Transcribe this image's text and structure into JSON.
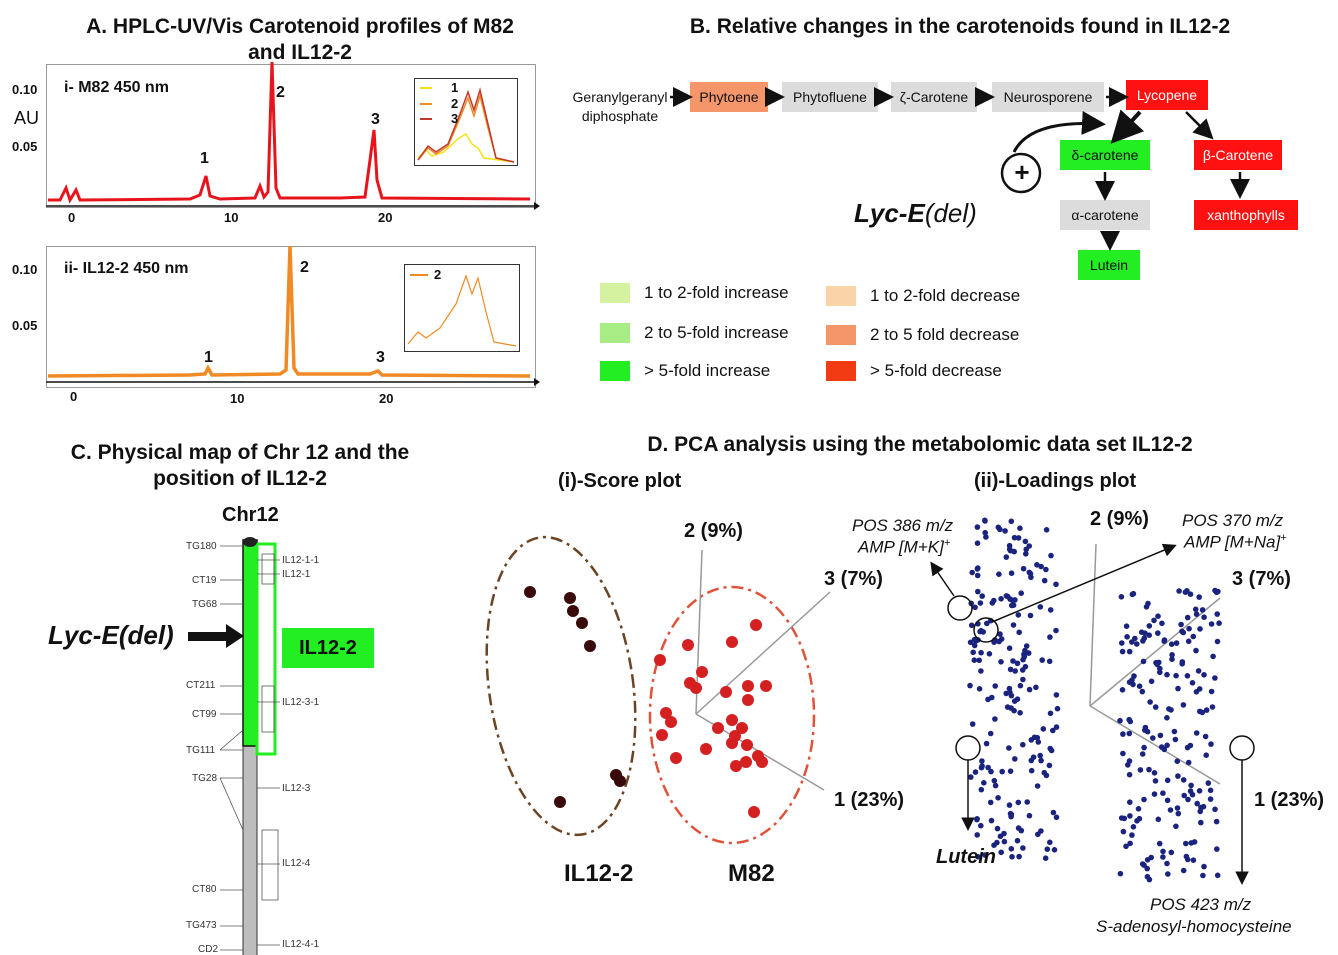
{
  "panelA": {
    "title_line1": "A.    HPLC-UV/Vis Carotenoid profiles of M82",
    "title_line2": "and IL12-2",
    "chart_i": {
      "label": "i- M82 450 nm",
      "y_ticks": [
        "0.10",
        "0.05"
      ],
      "y_unit": "AU",
      "x_ticks": [
        "0",
        "10",
        "20"
      ],
      "peaks": [
        "1",
        "2",
        "3"
      ],
      "inset_legend": [
        "1",
        "2",
        "3"
      ]
    },
    "chart_ii": {
      "label": "ii- IL12-2 450 nm",
      "y_ticks": [
        "0.10",
        "0.05"
      ],
      "x_ticks": [
        "0",
        "10",
        "20"
      ],
      "peaks": [
        "1",
        "2",
        "3"
      ],
      "inset_legend": [
        "2"
      ]
    },
    "colors": {
      "m82": "#e8141c",
      "il": "#f08a24",
      "inset1": "#f5e11b",
      "inset2": "#f08a24",
      "inset3": "#c0392b"
    }
  },
  "panelB": {
    "title": "B. Relative changes in the carotenoids found in IL12-2",
    "nodes": {
      "ggpp": "Geranylgeranyl diphosphate",
      "phytoene": "Phytoene",
      "phytofluene": "Phytofluene",
      "zeta": "ζ-Carotene",
      "neuro": "Neurosporene",
      "lycopene": "Lycopene",
      "delta": "δ-carotene",
      "alpha": "α-carotene",
      "lutein": "Lutein",
      "beta": "β-Carotene",
      "xanth": "xanthophylls"
    },
    "plus": "+",
    "lyc_gene": "Lyc-E",
    "lyc_del": "(del)",
    "legend": [
      {
        "label": "1 to 2-fold increase",
        "color": "#d4f2a0"
      },
      {
        "label": "2 to 5-fold increase",
        "color": "#a8ec86"
      },
      {
        "label": "> 5-fold increase",
        "color": "#22ee22"
      },
      {
        "label": "1 to 2-fold decrease",
        "color": "#fbd3a8"
      },
      {
        "label": "2 to 5 fold decrease",
        "color": "#f4956a"
      },
      {
        "label": "> 5-fold decrease",
        "color": "#f23b12"
      }
    ]
  },
  "panelC": {
    "title_line1": "C. Physical map of Chr 12 and the",
    "title_line2": "position of IL12-2",
    "chr": "Chr12",
    "il_label": "IL12-2",
    "lyc_gene": "Lyc-E",
    "lyc_del": "(del)",
    "markers": [
      "TG180",
      "CT19",
      "TG68",
      "CT211",
      "CT99",
      "TG111",
      "TG28",
      "CT80",
      "TG473",
      "CD2"
    ],
    "ils": [
      "IL12-1-1",
      "IL12-1",
      "IL12-3-1",
      "IL12-3",
      "IL12-4",
      "IL12-4-1"
    ]
  },
  "panelD": {
    "title": "D. PCA analysis using the metabolomic data set IL12-2",
    "score_title": "(i)-Score plot",
    "loadings_title": "(ii)-Loadings plot",
    "axis1": "1 (23%)",
    "axis2": "2 (9%)",
    "axis3": "3 (7%)",
    "group_il": "IL12-2",
    "group_m82": "M82",
    "ann_386_l1": "POS 386 m/z",
    "ann_386_l2": "AMP [M+K]",
    "ann_370_l1": "POS 370 m/z",
    "ann_370_l2": "AMP [M+Na]",
    "sup_plus": "+",
    "lutein": "Lutein",
    "ann_423_l1": "POS 423 m/z",
    "ann_423_l2": "S-adenosyl-homocysteine"
  }
}
